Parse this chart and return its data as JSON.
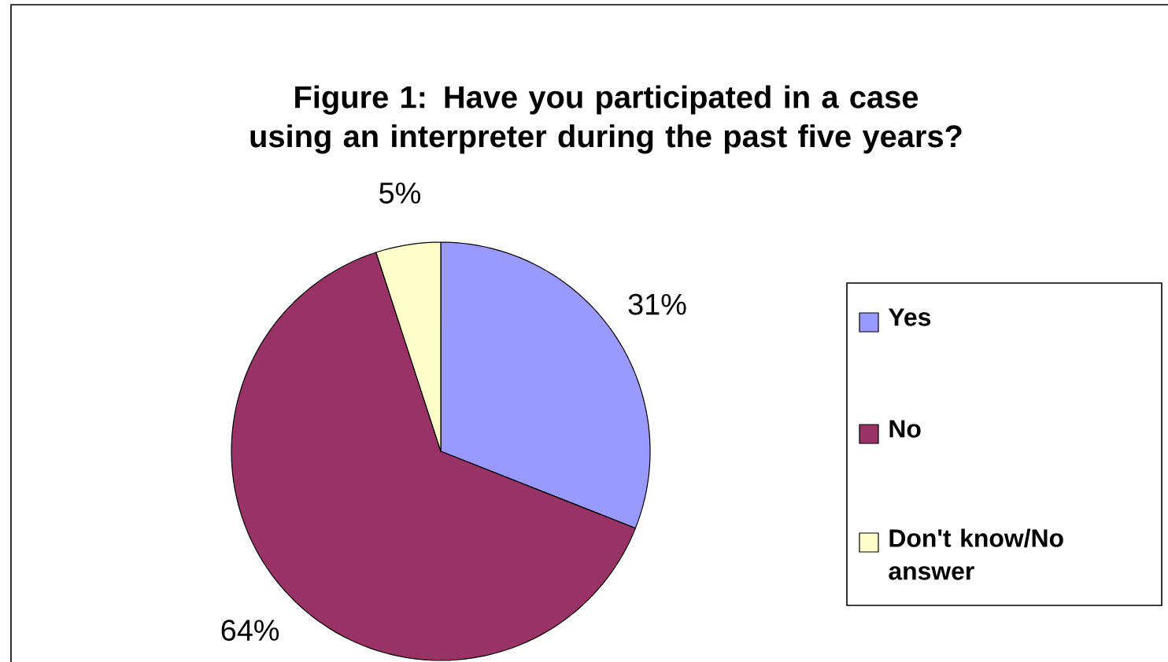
{
  "chart_data": {
    "type": "pie",
    "title": "Figure 1: Have you participated in a case using an interpreter during the past five years?",
    "categories": [
      "Yes",
      "No",
      "Don't know/No answer"
    ],
    "values": [
      31,
      64,
      5
    ],
    "colors": [
      "#9999ff",
      "#993366",
      "#ffffcc"
    ],
    "value_labels": [
      "31%",
      "64%",
      "5%"
    ],
    "legend": "right"
  }
}
